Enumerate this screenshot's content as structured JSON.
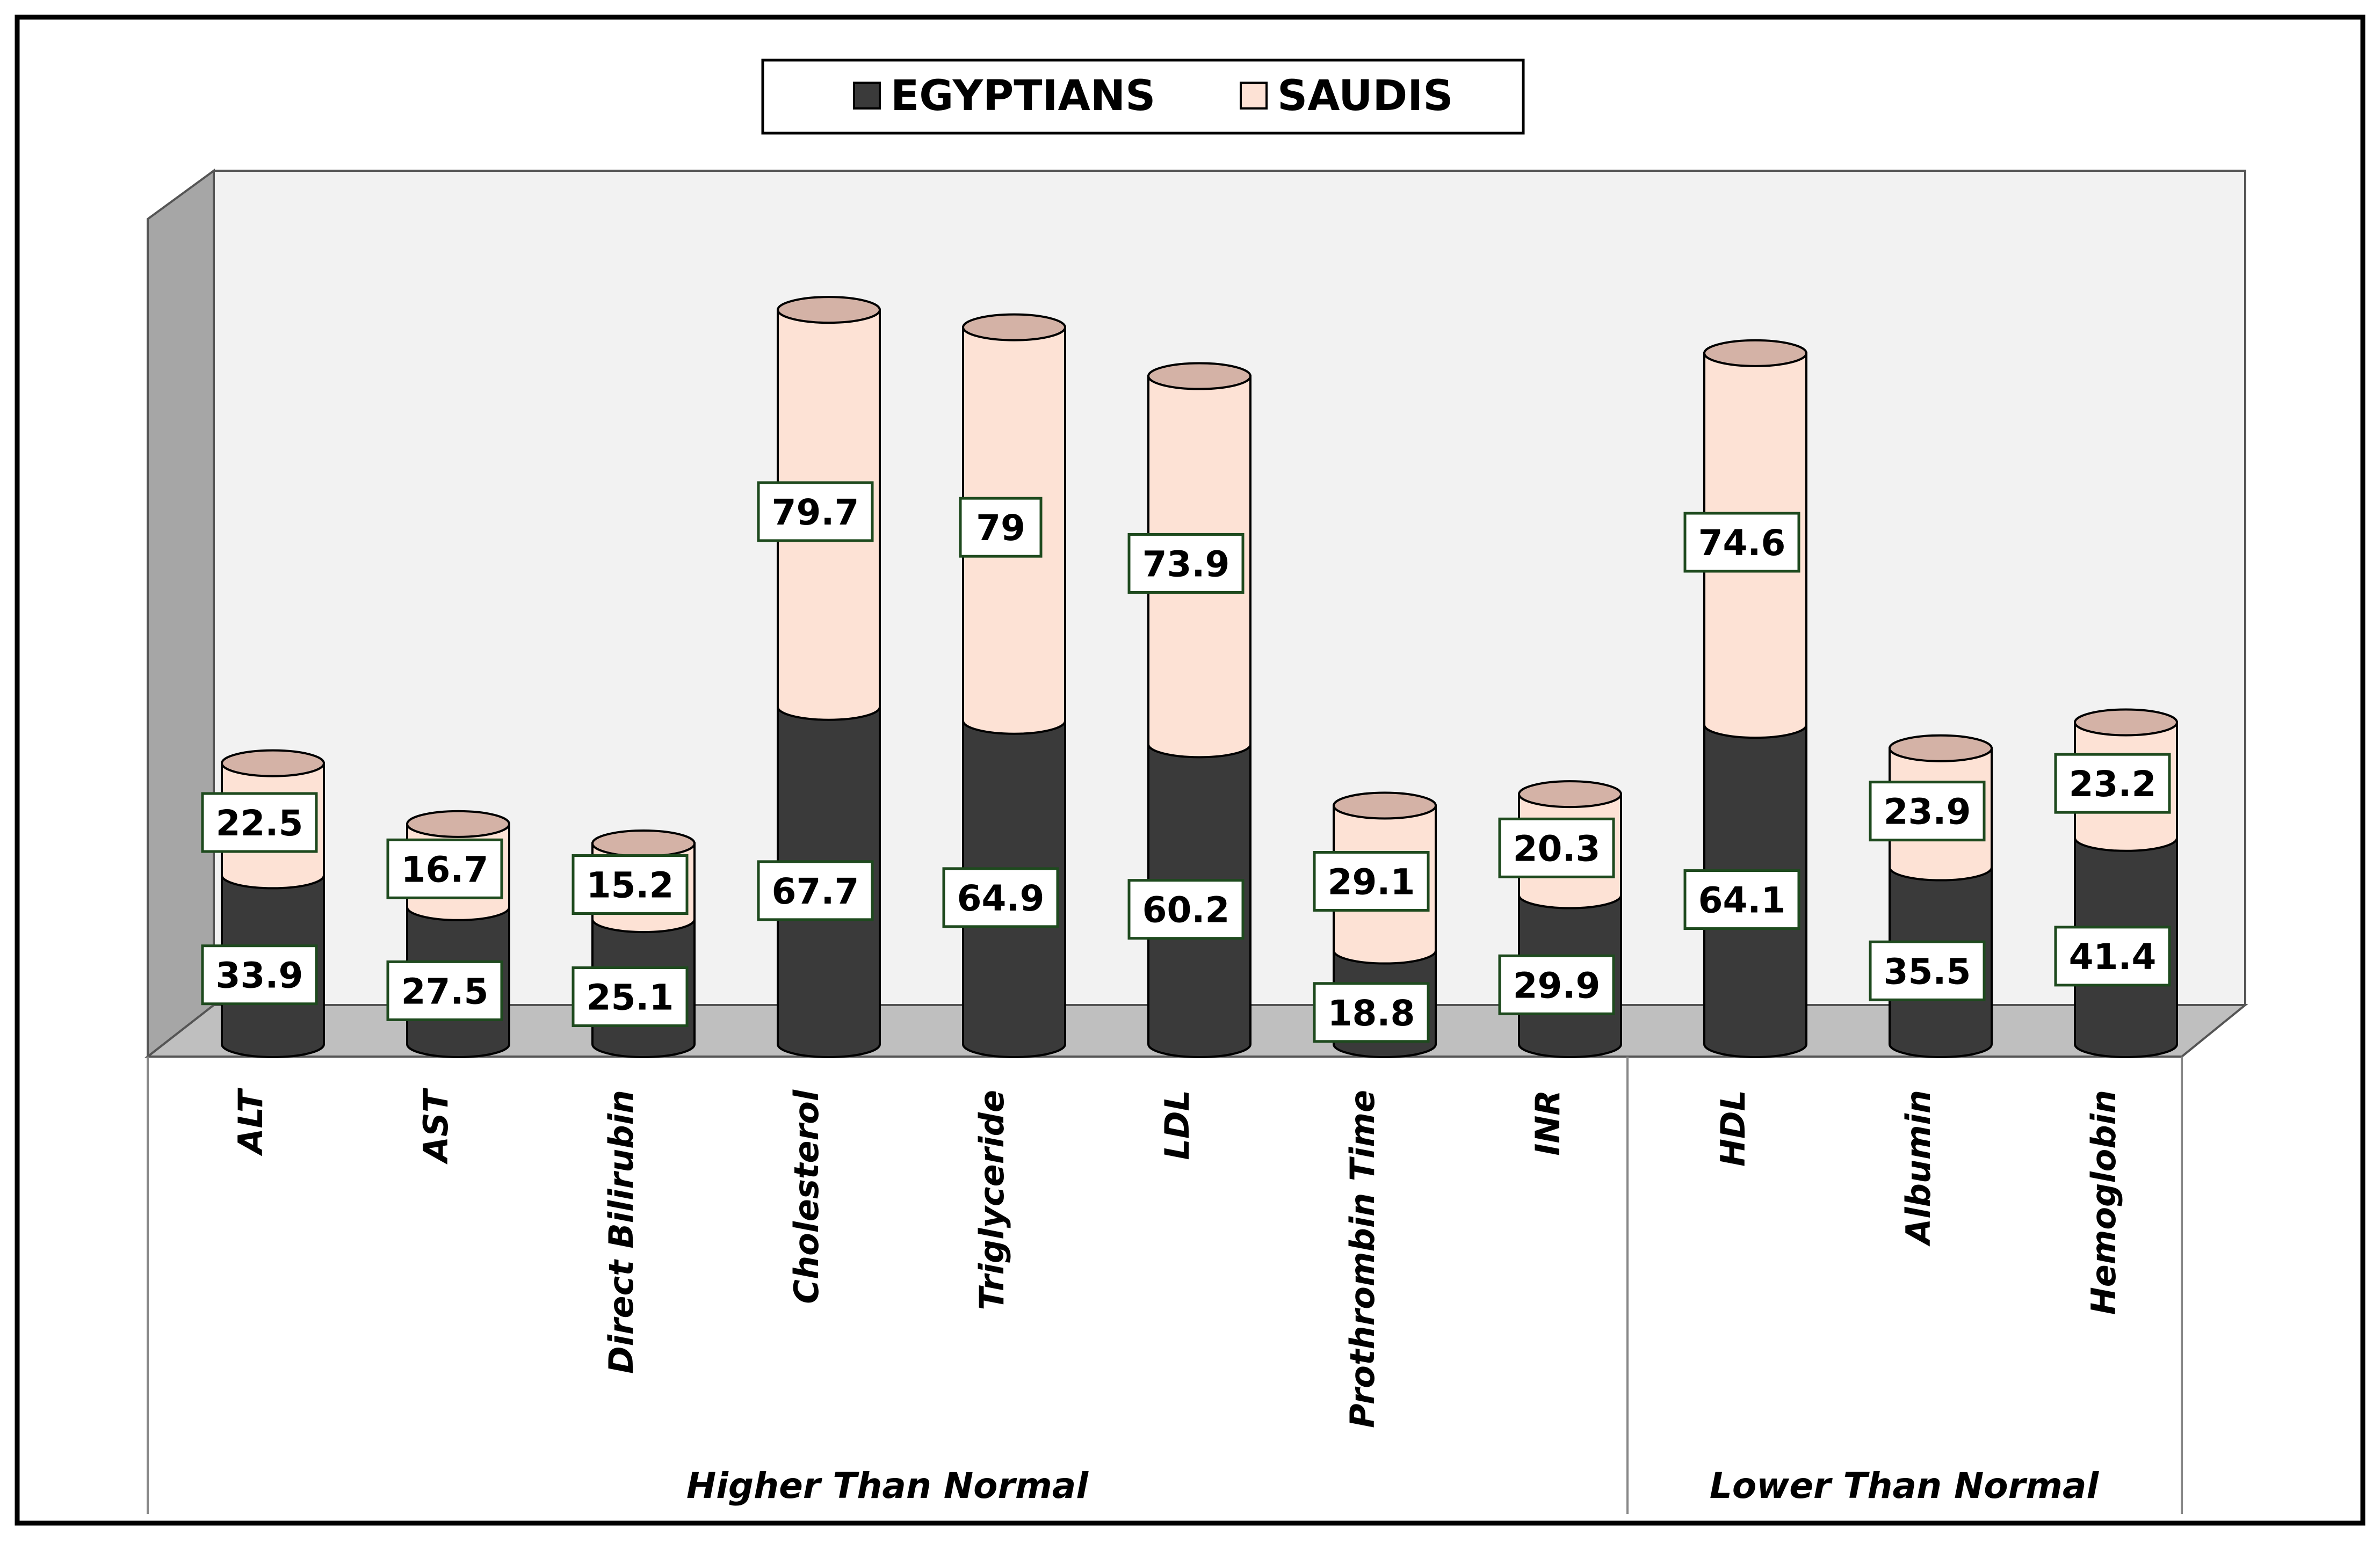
{
  "chart_data": {
    "type": "bar",
    "stacked": true,
    "style": "3d-cylinder",
    "title": "",
    "xlabel": "",
    "ylabel": "",
    "legend": {
      "placement": "top-center",
      "entries": [
        "EGYPTIANS",
        "SAUDIS"
      ]
    },
    "grid": false,
    "categories": [
      "ALT",
      "AST",
      "Direct Bilirubin",
      "Cholesterol",
      "Triglyceride",
      "LDL",
      "Prothrombin Time",
      "INR",
      "HDL",
      "Albumin",
      "Hemoglobin"
    ],
    "groups": [
      {
        "label": "Higher Than Normal",
        "categories": [
          "ALT",
          "AST",
          "Direct Bilirubin",
          "Cholesterol",
          "Triglyceride",
          "LDL",
          "Prothrombin Time",
          "INR"
        ]
      },
      {
        "label": "Lower Than Normal",
        "categories": [
          "HDL",
          "Albumin",
          "Hemoglobin"
        ]
      }
    ],
    "series": [
      {
        "name": "EGYPTIANS",
        "color": "#3a3a3a",
        "values": [
          33.9,
          27.5,
          25.1,
          67.7,
          64.9,
          60.2,
          18.8,
          29.9,
          64.1,
          35.5,
          41.4
        ]
      },
      {
        "name": "SAUDIS",
        "color": "#fde2d5",
        "values": [
          22.5,
          16.7,
          15.2,
          79.7,
          79,
          73.9,
          29.1,
          20.3,
          74.6,
          23.9,
          23.2
        ]
      }
    ],
    "value_labels": [
      [
        "33.9",
        "27.5",
        "25.1",
        "67.7",
        "64.9",
        "60.2",
        "18.8",
        "29.9",
        "64.1",
        "35.5",
        "41.4"
      ],
      [
        "22.5",
        "16.7",
        "15.2",
        "79.7",
        "79",
        "73.9",
        "29.1",
        "20.3",
        "74.6",
        "23.9",
        "23.2"
      ]
    ],
    "ylim": [
      0,
      155
    ]
  }
}
